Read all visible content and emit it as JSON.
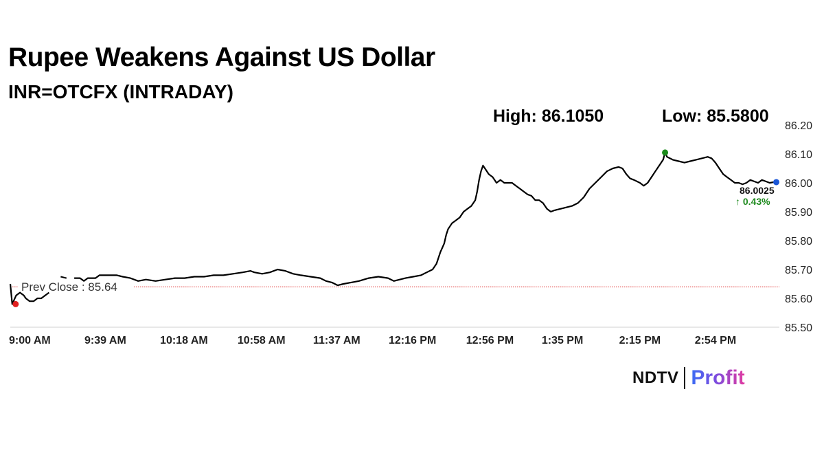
{
  "title": "Rupee Weakens Against US Dollar",
  "subtitle": "INR=OTCFX (INTRADAY)",
  "high_label": "High: 86.1050",
  "low_label": "Low: 85.5800",
  "brand": {
    "name": "NDTV",
    "product": "Profit",
    "colors": {
      "gradient_start": "#3a6cf4",
      "gradient_end": "#e23ba0"
    }
  },
  "chart_data": {
    "type": "line",
    "title": "Rupee Weakens Against US Dollar",
    "ylim": [
      85.5,
      86.2
    ],
    "y_ticks": [
      "86.20",
      "86.10",
      "86.00",
      "85.90",
      "85.80",
      "85.70",
      "85.60",
      "85.50"
    ],
    "y_tick_values": [
      86.2,
      86.1,
      86.0,
      85.9,
      85.8,
      85.7,
      85.6,
      85.5
    ],
    "x_ticks": [
      "9:00 AM",
      "9:39 AM",
      "10:18 AM",
      "10:58 AM",
      "11:37 AM",
      "12:16 PM",
      "12:56 PM",
      "1:35 PM",
      "2:15 PM",
      "2:54 PM"
    ],
    "x_tick_minutes": [
      0,
      39,
      78,
      118,
      157,
      196,
      236,
      275,
      315,
      354
    ],
    "x_range_minutes": [
      0,
      397
    ],
    "prev_close": {
      "label": "Prev Close : 85.64",
      "value": 85.64,
      "color": "#e03030"
    },
    "last": {
      "value_label": "86.0025",
      "change_label": "↑ 0.43%",
      "value": 86.0025,
      "color": "#1a56d6",
      "change_color": "#1e8a1e"
    },
    "open_point": {
      "minutes": 1,
      "value": 85.58,
      "color": "#e02020"
    },
    "high_point": {
      "minutes": 338,
      "value": 86.105,
      "color": "#1a8a1a"
    },
    "series": [
      {
        "color": "#000000",
        "points": [
          [
            0,
            85.65
          ],
          [
            1,
            85.58
          ],
          [
            3,
            85.61
          ],
          [
            5,
            85.62
          ],
          [
            7,
            85.61
          ],
          [
            8,
            85.6
          ],
          [
            10,
            85.59
          ],
          [
            12,
            85.59
          ],
          [
            14,
            85.6
          ],
          [
            16,
            85.6
          ],
          [
            18,
            85.61
          ],
          [
            20,
            85.62
          ],
          [
            33,
            85.67
          ],
          [
            36,
            85.67
          ],
          [
            38,
            85.66
          ],
          [
            40,
            85.67
          ],
          [
            44,
            85.67
          ],
          [
            46,
            85.68
          ],
          [
            50,
            85.68
          ],
          [
            55,
            85.68
          ],
          [
            58,
            85.675
          ],
          [
            62,
            85.67
          ],
          [
            66,
            85.66
          ],
          [
            70,
            85.665
          ],
          [
            75,
            85.66
          ],
          [
            80,
            85.665
          ],
          [
            85,
            85.67
          ],
          [
            90,
            85.67
          ],
          [
            95,
            85.675
          ],
          [
            100,
            85.675
          ],
          [
            105,
            85.68
          ],
          [
            110,
            85.68
          ],
          [
            115,
            85.685
          ],
          [
            120,
            85.69
          ],
          [
            124,
            85.695
          ],
          [
            126,
            85.69
          ],
          [
            130,
            85.685
          ],
          [
            134,
            85.69
          ],
          [
            138,
            85.7
          ],
          [
            142,
            85.695
          ],
          [
            146,
            85.685
          ],
          [
            150,
            85.68
          ],
          [
            155,
            85.675
          ],
          [
            160,
            85.67
          ],
          [
            163,
            85.66
          ],
          [
            166,
            85.655
          ],
          [
            169,
            85.645
          ],
          [
            172,
            85.65
          ],
          [
            176,
            85.655
          ],
          [
            180,
            85.66
          ],
          [
            185,
            85.67
          ],
          [
            190,
            85.675
          ],
          [
            195,
            85.67
          ],
          [
            198,
            85.66
          ],
          [
            201,
            85.665
          ],
          [
            204,
            85.67
          ],
          [
            208,
            85.675
          ],
          [
            212,
            85.68
          ],
          [
            215,
            85.69
          ],
          [
            218,
            85.7
          ],
          [
            220,
            85.72
          ],
          [
            222,
            85.76
          ],
          [
            224,
            85.79
          ],
          [
            225,
            85.82
          ],
          [
            226,
            85.84
          ],
          [
            228,
            85.86
          ],
          [
            230,
            85.87
          ],
          [
            232,
            85.88
          ],
          [
            234,
            85.9
          ],
          [
            236,
            85.91
          ],
          [
            238,
            85.92
          ],
          [
            240,
            85.94
          ],
          [
            241,
            85.97
          ],
          [
            242,
            86.01
          ],
          [
            243,
            86.04
          ],
          [
            244,
            86.06
          ],
          [
            245,
            86.05
          ],
          [
            247,
            86.03
          ],
          [
            249,
            86.02
          ],
          [
            251,
            86.0
          ],
          [
            253,
            86.01
          ],
          [
            255,
            86.0
          ],
          [
            257,
            86.0
          ],
          [
            259,
            86.0
          ],
          [
            261,
            85.99
          ],
          [
            263,
            85.98
          ],
          [
            265,
            85.97
          ],
          [
            267,
            85.96
          ],
          [
            269,
            85.955
          ],
          [
            271,
            85.94
          ],
          [
            273,
            85.94
          ],
          [
            275,
            85.93
          ],
          [
            277,
            85.91
          ],
          [
            279,
            85.9
          ],
          [
            281,
            85.905
          ],
          [
            284,
            85.91
          ],
          [
            287,
            85.915
          ],
          [
            290,
            85.92
          ],
          [
            293,
            85.93
          ],
          [
            296,
            85.95
          ],
          [
            299,
            85.98
          ],
          [
            302,
            86.0
          ],
          [
            305,
            86.02
          ],
          [
            308,
            86.04
          ],
          [
            311,
            86.05
          ],
          [
            314,
            86.055
          ],
          [
            316,
            86.05
          ],
          [
            318,
            86.03
          ],
          [
            320,
            86.015
          ],
          [
            322,
            86.01
          ],
          [
            325,
            86.0
          ],
          [
            327,
            85.99
          ],
          [
            329,
            86.0
          ],
          [
            331,
            86.02
          ],
          [
            333,
            86.04
          ],
          [
            335,
            86.06
          ],
          [
            337,
            86.08
          ],
          [
            338,
            86.105
          ],
          [
            339,
            86.09
          ],
          [
            342,
            86.08
          ],
          [
            345,
            86.075
          ],
          [
            348,
            86.07
          ],
          [
            351,
            86.075
          ],
          [
            354,
            86.08
          ],
          [
            357,
            86.085
          ],
          [
            360,
            86.09
          ],
          [
            362,
            86.085
          ],
          [
            364,
            86.07
          ],
          [
            366,
            86.05
          ],
          [
            368,
            86.03
          ],
          [
            370,
            86.02
          ],
          [
            372,
            86.01
          ],
          [
            374,
            86.0
          ],
          [
            376,
            86.0
          ],
          [
            378,
            85.995
          ],
          [
            380,
            86.0
          ],
          [
            382,
            86.01
          ],
          [
            384,
            86.005
          ],
          [
            386,
            86.0
          ],
          [
            388,
            86.01
          ],
          [
            390,
            86.005
          ],
          [
            392,
            86.0
          ],
          [
            394,
            86.0025
          ]
        ]
      }
    ],
    "gap_segment": [
      [
        26,
        85.675
      ],
      [
        29,
        85.67
      ]
    ],
    "grid": false
  }
}
